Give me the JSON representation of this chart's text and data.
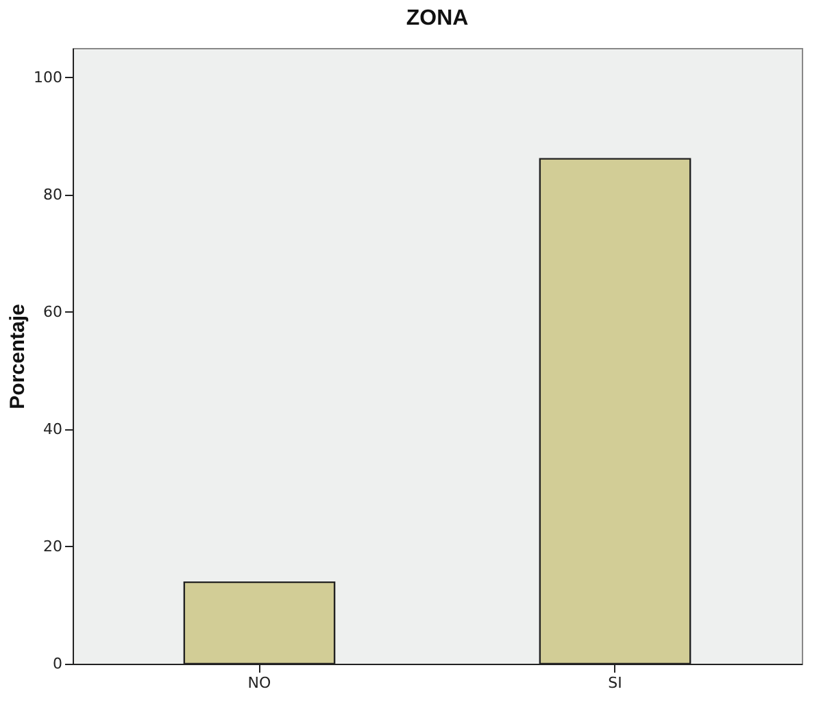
{
  "chart_data": {
    "type": "bar",
    "title": "ZONA",
    "ylabel": "Porcentaje",
    "categories": [
      "NO",
      "SI"
    ],
    "values": [
      13.9,
      86.1
    ],
    "color": "#d2cd96",
    "ylim": [
      0,
      105
    ],
    "yticks": [
      0,
      20,
      40,
      60,
      80,
      100
    ],
    "grid": false
  }
}
